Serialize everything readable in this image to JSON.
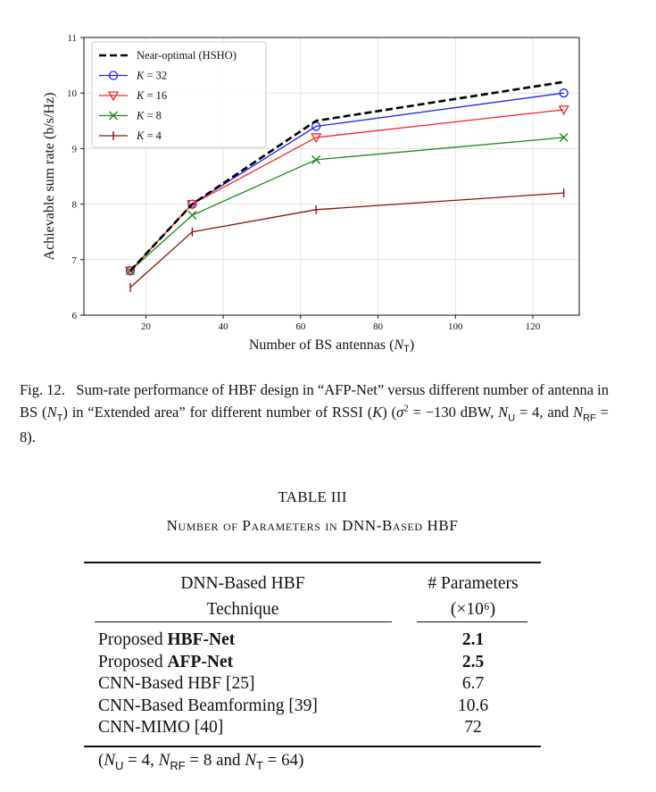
{
  "chart_data": {
    "type": "line",
    "xlabel": "Number of BS antennas (N_T)",
    "ylabel": "Achievable sum rate (b/s/Hz)",
    "xlim": [
      4,
      132
    ],
    "ylim": [
      6,
      11
    ],
    "xticks": [
      20,
      40,
      60,
      80,
      100,
      120
    ],
    "yticks": [
      6,
      7,
      8,
      9,
      10,
      11
    ],
    "grid": true,
    "legend_position": "top-left",
    "x": [
      16,
      32,
      64,
      128
    ],
    "series": [
      {
        "name": "Near-optimal (HSHO)",
        "values": [
          6.8,
          8.0,
          9.5,
          10.2
        ],
        "color": "#000000",
        "marker": "none",
        "dash": true
      },
      {
        "name": "K = 32",
        "values": [
          6.8,
          8.0,
          9.4,
          10.0
        ],
        "color": "#1f1fff",
        "marker": "circle"
      },
      {
        "name": "K = 16",
        "values": [
          6.8,
          8.0,
          9.2,
          9.7
        ],
        "color": "#ff2020",
        "marker": "triangle-down"
      },
      {
        "name": "K = 8",
        "values": [
          6.8,
          7.8,
          8.8,
          9.2
        ],
        "color": "#1a8a1a",
        "marker": "x"
      },
      {
        "name": "K = 4",
        "values": [
          6.5,
          7.5,
          7.9,
          8.2
        ],
        "color": "#8b1010",
        "marker": "vline"
      }
    ]
  },
  "caption": {
    "label": "Fig. 12.",
    "text": "Sum-rate performance of HBF design in “AFP-Net” versus different number of antenna in BS (N_T) in “Extended area” for different number of RSSI (K) (σ² = −130 dBW, N_U = 4, and N_RF = 8)."
  },
  "table": {
    "title": "TABLE III",
    "subtitle": "Number of Parameters in DNN-Based HBF",
    "col1_header_line1": "DNN-Based HBF",
    "col1_header_line2": "Technique",
    "col2_header_line1": "# Parameters",
    "col2_header_line2": "(×10⁶)",
    "rows": [
      {
        "prefix": "Proposed ",
        "name": "HBF-Net",
        "bold": true,
        "value": "2.1"
      },
      {
        "prefix": "Proposed ",
        "name": "AFP-Net",
        "bold": true,
        "value": "2.5"
      },
      {
        "prefix": "",
        "name": "CNN-Based HBF [25]",
        "bold": false,
        "value": "6.7"
      },
      {
        "prefix": "",
        "name": "CNN-Based Beamforming [39]",
        "bold": false,
        "value": "10.6"
      },
      {
        "prefix": "",
        "name": "CNN-MIMO [40]",
        "bold": false,
        "value": "72"
      }
    ],
    "footnote": "(N_U = 4, N_RF = 8 and N_T = 64)"
  }
}
